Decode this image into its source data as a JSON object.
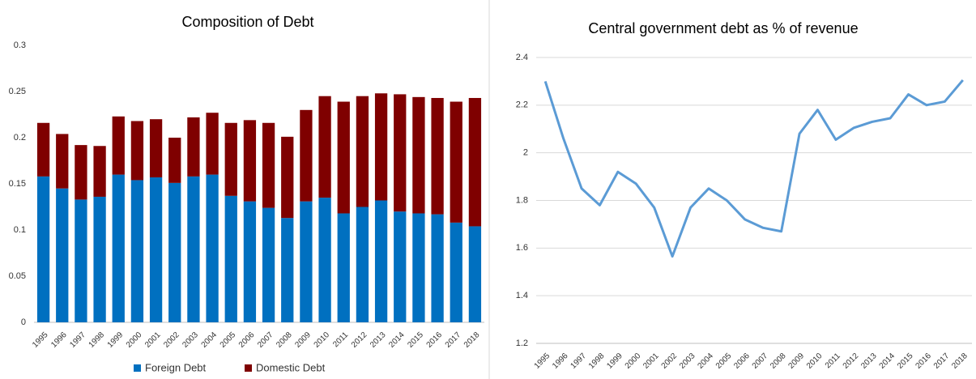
{
  "chart_data": [
    {
      "type": "stacked-bar",
      "title": "Composition of Debt",
      "categories": [
        "1995",
        "1996",
        "1997",
        "1998",
        "1999",
        "2000",
        "2001",
        "2002",
        "2003",
        "2004",
        "2005",
        "2006",
        "2007",
        "2008",
        "2009",
        "2010",
        "2011",
        "2012",
        "2013",
        "2014",
        "2015",
        "2016",
        "2017",
        "2018"
      ],
      "series": [
        {
          "name": "Foreign Debt",
          "color": "#0070c0",
          "values": [
            0.158,
            0.145,
            0.133,
            0.136,
            0.16,
            0.154,
            0.157,
            0.151,
            0.158,
            0.16,
            0.137,
            0.131,
            0.124,
            0.113,
            0.131,
            0.135,
            0.118,
            0.125,
            0.132,
            0.12,
            0.118,
            0.117,
            0.108,
            0.104
          ]
        },
        {
          "name": "Domestic Debt",
          "color": "#7f0000",
          "values": [
            0.058,
            0.059,
            0.059,
            0.055,
            0.063,
            0.064,
            0.063,
            0.049,
            0.064,
            0.067,
            0.079,
            0.088,
            0.092,
            0.088,
            0.099,
            0.11,
            0.121,
            0.12,
            0.116,
            0.127,
            0.126,
            0.126,
            0.131,
            0.139
          ]
        }
      ],
      "ylim": [
        0,
        0.3
      ],
      "yticks": [
        0,
        0.05,
        0.1,
        0.15,
        0.2,
        0.25,
        0.3
      ],
      "grid": false,
      "legend": "bottom"
    },
    {
      "type": "line",
      "title": "Central government debt as % of revenue",
      "categories": [
        "1995",
        "1996",
        "1997",
        "1998",
        "1999",
        "2000",
        "2001",
        "2002",
        "2003",
        "2004",
        "2005",
        "2006",
        "2007",
        "2008",
        "2009",
        "2010",
        "2011",
        "2012",
        "2013",
        "2014",
        "2015",
        "2016",
        "2017",
        "2018"
      ],
      "values": [
        2.3,
        2.06,
        1.85,
        1.78,
        1.92,
        1.87,
        1.77,
        1.565,
        1.77,
        1.85,
        1.8,
        1.72,
        1.685,
        1.67,
        2.08,
        2.18,
        2.055,
        2.105,
        2.13,
        2.145,
        2.245,
        2.2,
        2.215,
        2.305
      ],
      "color": "#5b9bd5",
      "ylim": [
        1.2,
        2.4
      ],
      "yticks": [
        1.2,
        1.4,
        1.6,
        1.8,
        2,
        2.2,
        2.4
      ],
      "grid": true
    }
  ]
}
